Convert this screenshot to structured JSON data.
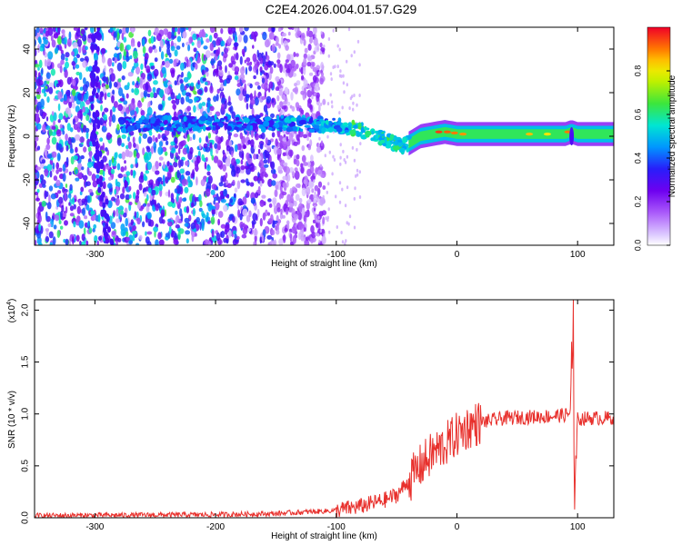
{
  "title": "C2E4.2026.004.01.57.G29",
  "chart_data": [
    {
      "type": "heatmap",
      "xlabel": "Height of straight line (km)",
      "ylabel": "Frequency (Hz)",
      "xlim": [
        -350,
        130
      ],
      "ylim": [
        -50,
        50
      ],
      "x_ticks": [
        -300,
        -200,
        -100,
        0,
        100
      ],
      "y_ticks": [
        -40,
        -20,
        0,
        20,
        40
      ],
      "colorbar": {
        "label": "Normalized spectral amplitude",
        "range": [
          0.0,
          1.0
        ],
        "ticks": [
          0.0,
          0.2,
          0.4,
          0.6,
          0.8
        ],
        "tick_labels": [
          "0.0",
          "0.2",
          "0.4",
          "0.6",
          "0.8"
        ]
      },
      "ridge": {
        "x": [
          -350,
          -300,
          -250,
          -200,
          -150,
          -100,
          -80,
          -60,
          -45,
          -30,
          -20,
          -10,
          0,
          20,
          50,
          90,
          95,
          100,
          130
        ],
        "y": [
          5,
          5,
          6,
          6,
          6,
          5,
          3,
          -1,
          -5,
          0,
          1,
          2,
          1,
          1,
          1,
          1,
          2,
          1,
          1
        ]
      },
      "noise_extent_km": -120
    },
    {
      "type": "line",
      "xlabel": "Height of straight line (km)",
      "ylabel": "SNR (10 * v/v)",
      "y_multiplier_label": "(x10",
      "y_multiplier_exp": "4",
      "y_multiplier_close": ")",
      "xlim": [
        -350,
        130
      ],
      "ylim": [
        0,
        2.1
      ],
      "x_ticks": [
        -300,
        -200,
        -100,
        0,
        100
      ],
      "y_ticks": [
        0.0,
        0.5,
        1.0,
        1.5,
        2.0
      ],
      "y_tick_labels": [
        "0.0",
        "0.5",
        "1.0",
        "1.5",
        "2.0"
      ],
      "series": [
        {
          "color": "#e8302c",
          "envelope": {
            "x": [
              -350,
              -200,
              -150,
              -100,
              -80,
              -60,
              -50,
              -40,
              -30,
              -20,
              -10,
              0,
              10,
              20,
              40,
              60,
              80,
              90,
              93,
              96,
              98,
              100,
              110,
              130
            ],
            "y": [
              0.02,
              0.03,
              0.04,
              0.07,
              0.11,
              0.17,
              0.22,
              0.35,
              0.5,
              0.62,
              0.7,
              0.8,
              0.88,
              0.92,
              0.96,
              0.97,
              0.98,
              0.99,
              1.0,
              1.2,
              0.3,
              0.95,
              0.96,
              0.96
            ]
          }
        }
      ]
    }
  ]
}
